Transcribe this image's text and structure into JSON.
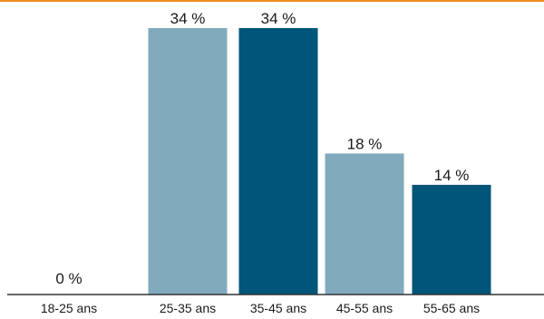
{
  "chart_data": {
    "type": "bar",
    "categories": [
      "18-25 ans",
      "25-35 ans",
      "35-45 ans",
      "45-55 ans",
      "55-65 ans"
    ],
    "values": [
      0,
      34,
      34,
      18,
      14
    ],
    "value_labels": [
      "0 %",
      "34 %",
      "34 %",
      "18 %",
      "14 %"
    ],
    "title": "",
    "xlabel": "",
    "ylabel": "",
    "ylim": [
      0,
      34
    ],
    "grid": false,
    "colors": [
      "#81abbd",
      "#81abbd",
      "#005578",
      "#81abbd",
      "#005578"
    ],
    "accent_line_color": "#f28c1e",
    "axis_color": "#333333"
  }
}
